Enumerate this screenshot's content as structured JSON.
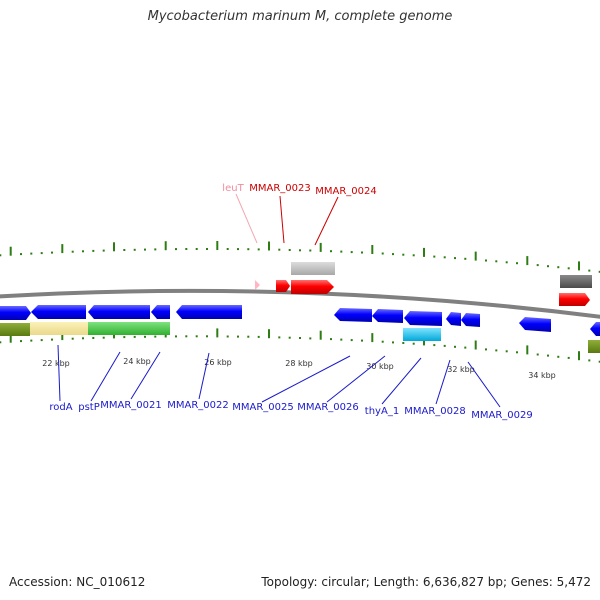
{
  "title": "Mycobacterium marinum M, complete genome",
  "footer": {
    "accession": "Accession: NC_010612",
    "summary": "Topology: circular; Length: 6,636,827 bp; Genes: 5,472"
  },
  "colors": {
    "backbone": "#808080",
    "tick": "#2e7d14",
    "forward_gene": "#ff0000",
    "reverse_gene": "#0000ff",
    "trna": "#ffb6c1",
    "forward_label": "#cc0000",
    "reverse_label": "#1a1acc",
    "trna_label": "#f08ca0"
  },
  "scale_labels": [
    "22 kbp",
    "24 kbp",
    "26 kbp",
    "28 kbp",
    "30 kbp",
    "32 kbp",
    "34 kbp"
  ],
  "top_labels": [
    {
      "text": "leuT",
      "kind": "trna"
    },
    {
      "text": "MMAR_0023",
      "kind": "forward"
    },
    {
      "text": "MMAR_0024",
      "kind": "forward"
    }
  ],
  "bottom_labels": [
    {
      "text": "rodA"
    },
    {
      "text": "pstP"
    },
    {
      "text": "MMAR_0021"
    },
    {
      "text": "MMAR_0022"
    },
    {
      "text": "MMAR_0025"
    },
    {
      "text": "MMAR_0026"
    },
    {
      "text": "thyA_1"
    },
    {
      "text": "MMAR_0028"
    },
    {
      "text": "MMAR_0029"
    }
  ]
}
